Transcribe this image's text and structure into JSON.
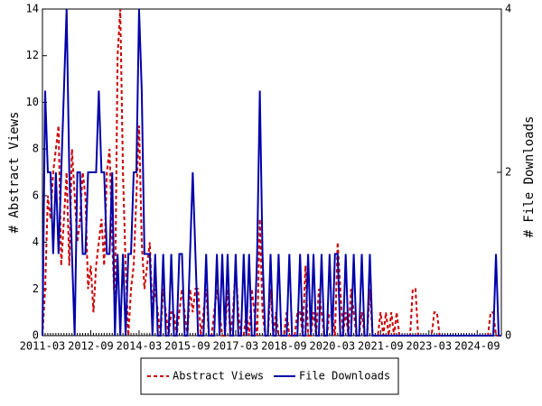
{
  "chart_data": {
    "type": "line",
    "ylabel": "# Abstract Views",
    "y2label": "# File Downloads",
    "ylim": [
      0,
      14
    ],
    "yticks": [
      0,
      2,
      4,
      6,
      8,
      10,
      12,
      14
    ],
    "y2lim": [
      0,
      4
    ],
    "y2ticks": [
      0,
      2,
      4
    ],
    "legend": "bottom",
    "categories": [
      "2011-03",
      null,
      null,
      null,
      null,
      null,
      null,
      null,
      null,
      null,
      null,
      null,
      null,
      null,
      null,
      null,
      null,
      null,
      "2012-09",
      null,
      null,
      null,
      null,
      null,
      null,
      null,
      null,
      null,
      null,
      null,
      null,
      null,
      null,
      null,
      null,
      null,
      "2014-03",
      null,
      null,
      null,
      null,
      null,
      null,
      null,
      null,
      null,
      null,
      null,
      null,
      null,
      null,
      null,
      null,
      null,
      "2015-09",
      null,
      null,
      null,
      null,
      null,
      null,
      null,
      null,
      null,
      null,
      null,
      null,
      null,
      null,
      null,
      null,
      null,
      "2017-03",
      null,
      null,
      null,
      null,
      null,
      null,
      null,
      null,
      null,
      null,
      null,
      null,
      null,
      null,
      null,
      null,
      null,
      "2018-09",
      null,
      null,
      null,
      null,
      null,
      null,
      null,
      null,
      null,
      null,
      null,
      null,
      null,
      null,
      null,
      null,
      null,
      "2020-03",
      null,
      null,
      null,
      null,
      null,
      null,
      null,
      null,
      null,
      null,
      null,
      null,
      null,
      null,
      null,
      null,
      null,
      "2021-09",
      null,
      null,
      null,
      null,
      null,
      null,
      null,
      null,
      null,
      null,
      null,
      null,
      null,
      null,
      null,
      null,
      null,
      "2023-03",
      null,
      null,
      null,
      null,
      null,
      null,
      null,
      null,
      null,
      null,
      null,
      null,
      null,
      null,
      null,
      null,
      null,
      "2024-09",
      null,
      null,
      null,
      null,
      null,
      null,
      null,
      null,
      null
    ],
    "series": [
      {
        "name": "Abstract Views",
        "color": "#cc0000",
        "dash": true,
        "values": [
          0,
          2,
          6,
          5,
          7,
          8,
          9,
          3,
          5,
          7,
          3,
          8,
          6,
          4,
          5,
          7,
          6,
          2,
          3,
          1,
          3,
          4,
          5,
          3,
          7,
          8,
          4,
          1,
          12,
          14,
          7,
          3,
          0,
          2,
          3,
          6,
          9,
          4,
          2,
          3,
          4,
          1,
          2,
          1,
          0,
          2,
          1,
          0,
          1,
          1,
          0,
          1,
          2,
          1,
          0,
          2,
          1,
          2,
          2,
          0,
          1,
          2,
          0,
          0,
          1,
          2,
          1,
          0,
          0,
          2,
          0,
          1,
          3,
          1,
          0,
          0,
          1,
          0,
          2,
          1,
          0,
          5,
          1,
          0,
          0,
          2,
          0,
          1,
          0,
          0,
          0,
          1,
          0,
          0,
          0,
          1,
          1,
          0,
          3,
          0,
          0,
          1,
          0,
          2,
          1,
          0,
          0,
          1,
          1,
          0,
          4,
          2,
          0,
          1,
          0,
          2,
          1,
          0,
          0,
          1,
          0,
          0,
          2,
          0,
          0,
          0,
          1,
          0,
          1,
          0,
          1,
          0,
          1,
          0,
          0,
          0,
          0,
          0,
          2,
          2,
          0,
          0,
          0,
          0,
          0,
          0,
          1,
          1,
          0,
          0,
          0,
          0,
          0,
          0,
          0,
          0,
          0,
          0,
          0,
          0,
          0,
          0,
          0,
          0,
          0,
          0,
          0,
          1,
          1,
          0,
          0,
          0
        ]
      },
      {
        "name": "File Downloads",
        "color": "#0000aa",
        "axis": "y2",
        "values": [
          0,
          3,
          2,
          2,
          1,
          2,
          1,
          2,
          3,
          4,
          2,
          1,
          0,
          2,
          2,
          1,
          1,
          2,
          2,
          2,
          2,
          3,
          2,
          2,
          1,
          1,
          2,
          0,
          1,
          0,
          1,
          0,
          1,
          1,
          2,
          2,
          4,
          3,
          1,
          1,
          1,
          0,
          1,
          0,
          0,
          1,
          0,
          0,
          1,
          0,
          0,
          1,
          1,
          0,
          0,
          1,
          2,
          1,
          0,
          0,
          0,
          1,
          0,
          0,
          0,
          1,
          0,
          1,
          0,
          1,
          0,
          0,
          1,
          0,
          0,
          1,
          0,
          1,
          0,
          0,
          1,
          3,
          1,
          0,
          0,
          1,
          0,
          0,
          1,
          0,
          0,
          0,
          1,
          0,
          0,
          0,
          1,
          0,
          0,
          1,
          0,
          1,
          0,
          0,
          1,
          0,
          0,
          1,
          0,
          1,
          1,
          0,
          0,
          1,
          0,
          0,
          1,
          0,
          0,
          1,
          0,
          0,
          1,
          0,
          0,
          0,
          0,
          0,
          0,
          0,
          0,
          0,
          0,
          0,
          0,
          0,
          0,
          0,
          0,
          0,
          0,
          0,
          0,
          0,
          0,
          0,
          0,
          0,
          0,
          0,
          0,
          0,
          0,
          0,
          0,
          0,
          0,
          0,
          0,
          0,
          0,
          0,
          0,
          0,
          0,
          0,
          0,
          0,
          0,
          1,
          0,
          0
        ]
      }
    ]
  }
}
